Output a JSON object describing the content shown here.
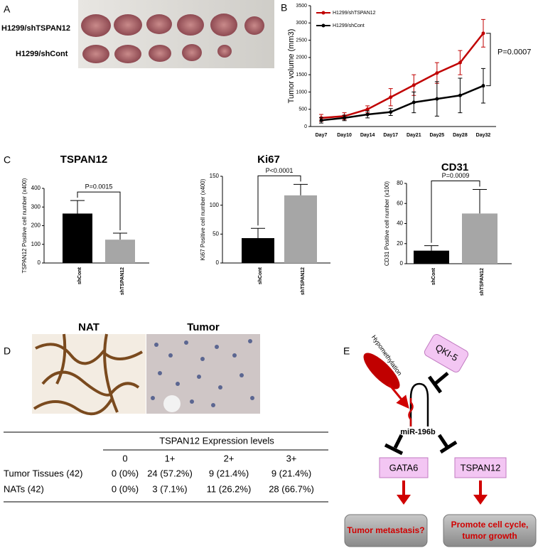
{
  "panel_labels": [
    "A",
    "B",
    "C",
    "D",
    "E"
  ],
  "photo_a": {
    "labels": [
      "H1299/shTSPAN12",
      "H1299/shCont"
    ]
  },
  "chart_data": [
    {
      "type": "line",
      "y_label": "Tumor volume (mm3)",
      "categories": [
        "Day7",
        "Day10",
        "Day14",
        "Day17",
        "Day21",
        "Day25",
        "Day28",
        "Day32"
      ],
      "series": [
        {
          "name": "H1299/shTSPAN12",
          "color": "#c00000",
          "values": [
            250,
            300,
            500,
            850,
            1200,
            1550,
            1850,
            2700
          ],
          "errors": [
            100,
            100,
            100,
            250,
            300,
            300,
            350,
            400
          ]
        },
        {
          "name": "H1299/shCont",
          "color": "#000000",
          "values": [
            180,
            250,
            350,
            420,
            700,
            800,
            900,
            1180
          ],
          "errors": [
            80,
            80,
            100,
            100,
            300,
            500,
            500,
            500
          ]
        }
      ],
      "ylim": [
        0,
        3500
      ],
      "yticks": [
        0,
        500,
        1000,
        1500,
        2000,
        2500,
        3000,
        3500
      ],
      "annotation": "P=0.0007",
      "legend": "top-left"
    },
    {
      "type": "bar",
      "title": "TSPAN12",
      "y_label": "TSPAN12 Positive cell number (x400)",
      "categories": [
        "shCont",
        "shTSPAN12"
      ],
      "values": [
        265,
        125
      ],
      "errors": [
        70,
        35
      ],
      "colors": [
        "#000000",
        "#a6a6a6"
      ],
      "ylim": [
        0,
        400
      ],
      "yticks": [
        0,
        100,
        200,
        300,
        400
      ],
      "annotation": "P=0.0015"
    },
    {
      "type": "bar",
      "title": "Ki67",
      "y_label": "Ki67 Positive cell number (x400)",
      "categories": [
        "shCont",
        "shTSPAN12"
      ],
      "values": [
        43,
        117
      ],
      "errors": [
        17,
        19
      ],
      "colors": [
        "#000000",
        "#a6a6a6"
      ],
      "ylim": [
        0,
        150
      ],
      "yticks": [
        0,
        50,
        100,
        150
      ],
      "annotation": "P<0.0001"
    },
    {
      "type": "bar",
      "title": "CD31",
      "y_label": "CD31 Positive cell number (x100)",
      "categories": [
        "shCont",
        "shTSPAN12"
      ],
      "values": [
        13,
        50
      ],
      "errors": [
        5,
        24
      ],
      "colors": [
        "#000000",
        "#a6a6a6"
      ],
      "ylim": [
        0,
        80
      ],
      "yticks": [
        0,
        20,
        40,
        60,
        80
      ],
      "annotation": "P=0.0009"
    }
  ],
  "photo_d": {
    "labels": [
      "NAT",
      "Tumor"
    ]
  },
  "table": {
    "header": "TSPAN12 Expression levels",
    "columns": [
      "0",
      "1+",
      "2+",
      "3+"
    ],
    "rows": [
      [
        "Tumor Tissues (42)",
        "0 (0%)",
        "24 (57.2%)",
        "9 (21.4%)",
        "9 (21.4%)"
      ],
      [
        "NATs (42)",
        "0 (0%)",
        "3 (7.1%)",
        "11 (26.2%)",
        "28 (66.7%)"
      ]
    ]
  },
  "diagram": {
    "nodes": [
      {
        "label": [
          "Hypomethylation"
        ]
      },
      {
        "label": [
          "QKI-5"
        ]
      },
      {
        "label": [
          "miR-196b"
        ]
      },
      {
        "label": [
          "GATA6"
        ]
      },
      {
        "label": [
          "TSPAN12"
        ]
      },
      {
        "label": [
          "Tumor metastasis?"
        ]
      },
      {
        "label": [
          "Promote cell cycle,",
          "tumor growth"
        ]
      }
    ]
  }
}
